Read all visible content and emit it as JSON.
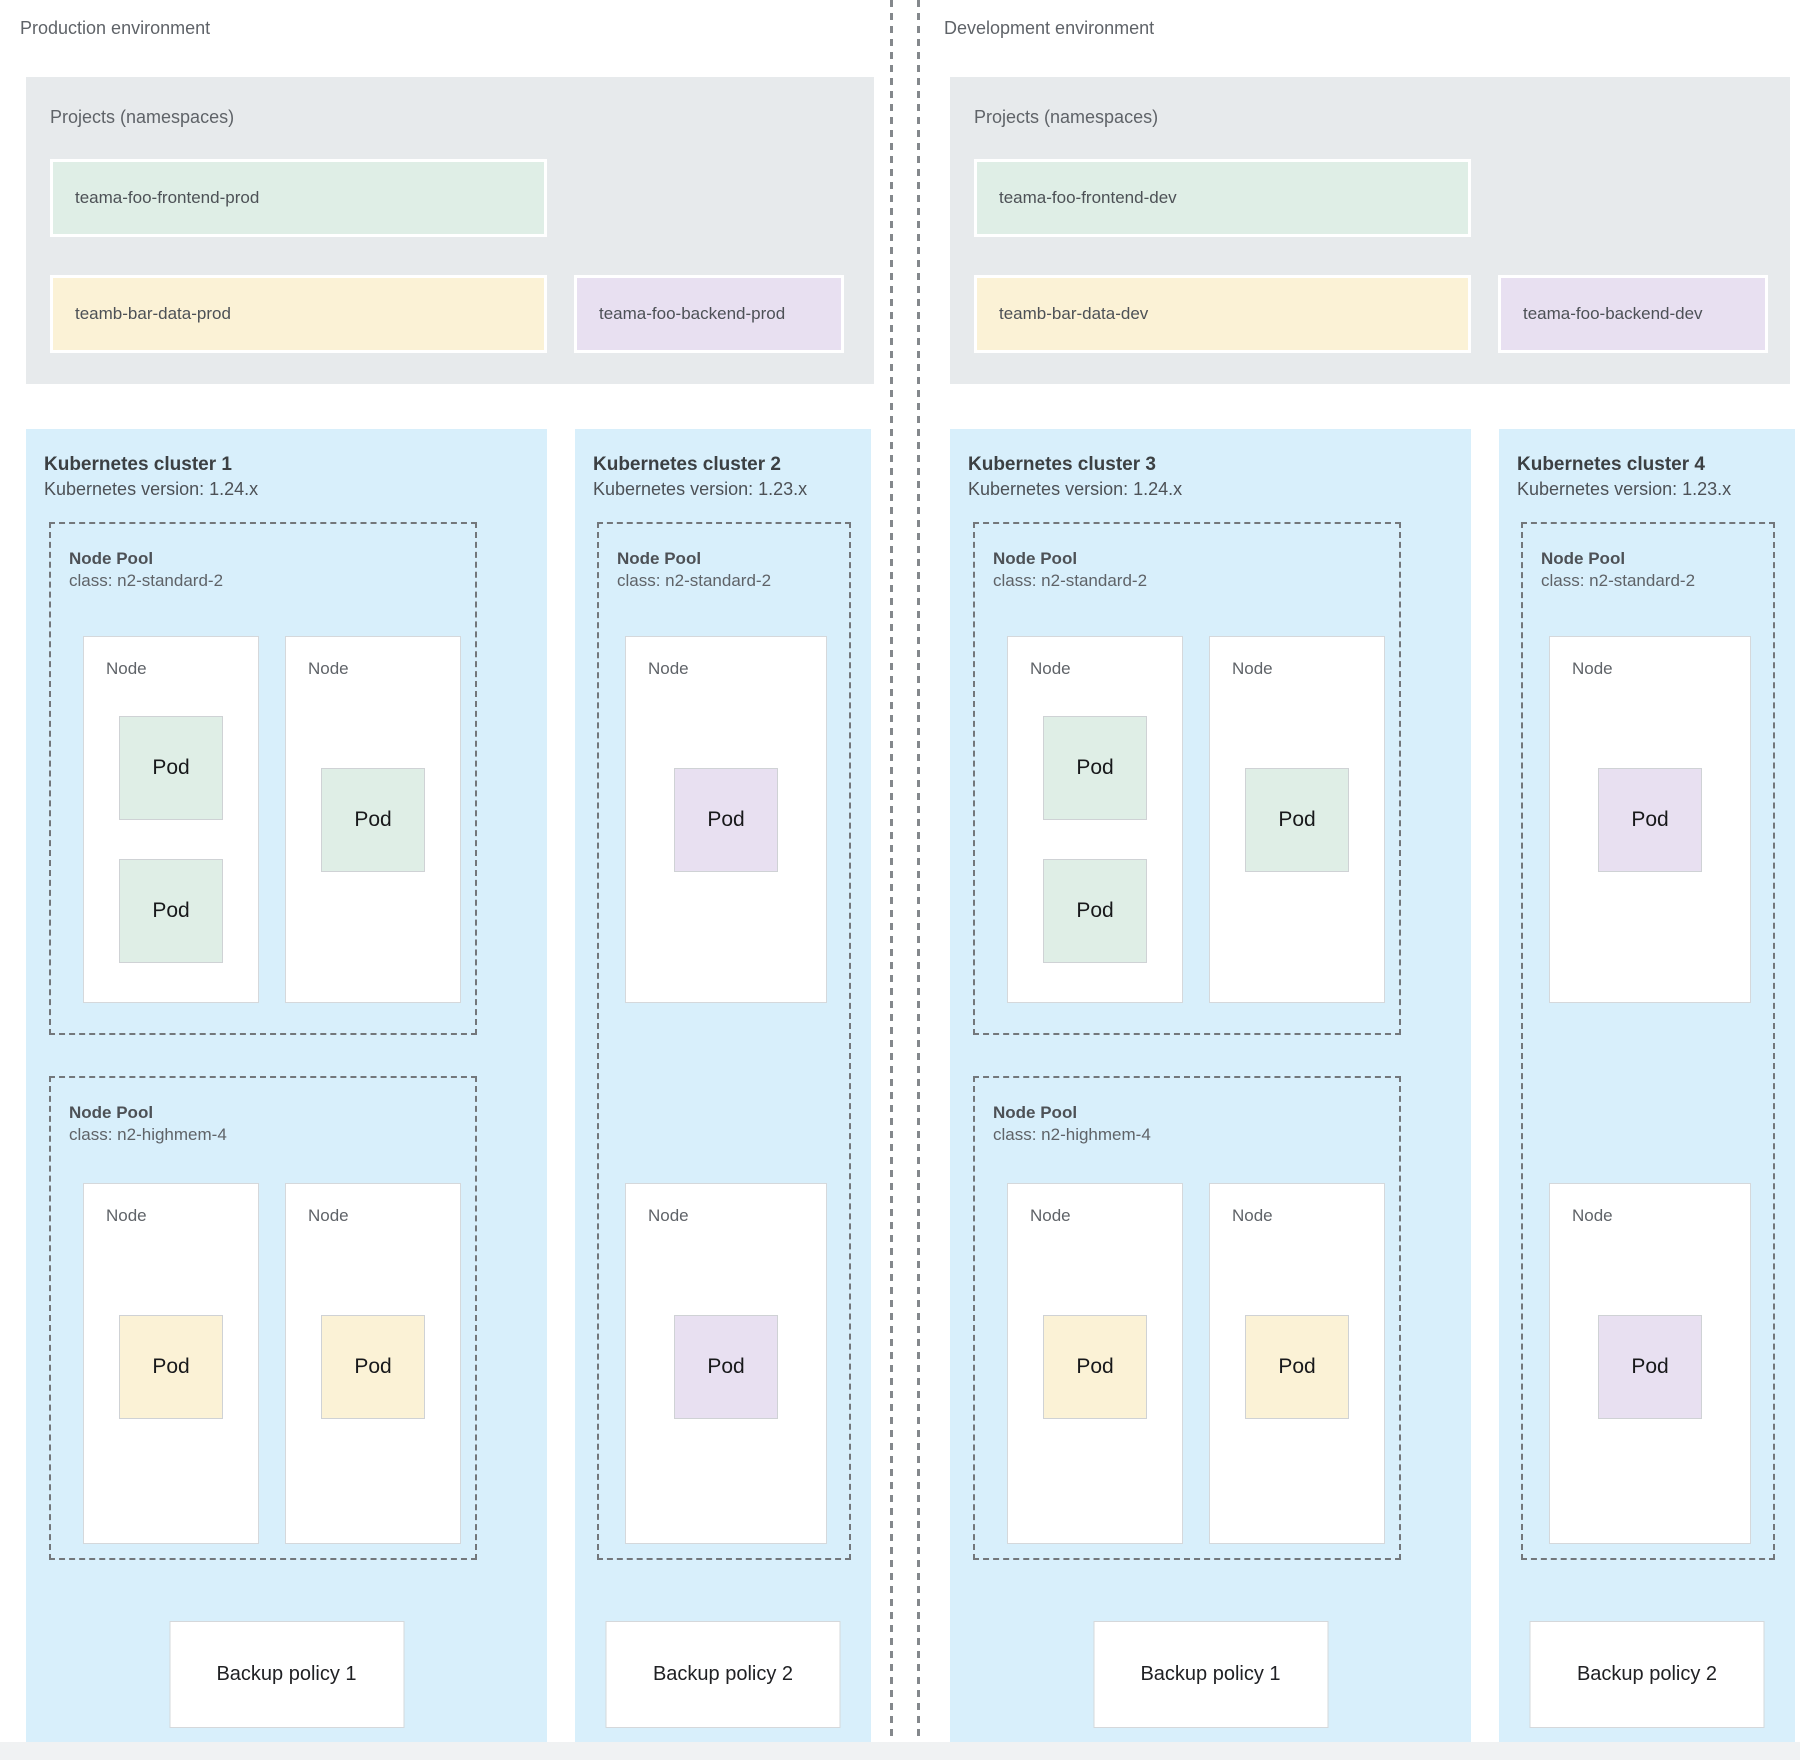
{
  "palette": {
    "cluster_bg": "#d8effb",
    "projects_panel_bg": "#e7eaec",
    "namespace_green": "#dfeee6",
    "namespace_yellow": "#fbf2d6",
    "namespace_purple": "#e8e0f1"
  },
  "environments": [
    {
      "label": "Production environment",
      "projects": {
        "title": "Projects (namespaces)",
        "namespaces": [
          {
            "name": "teama-foo-frontend-prod",
            "color": "#dfeee6"
          },
          {
            "name": "teamb-bar-data-prod",
            "color": "#fbf2d6"
          },
          {
            "name": "teama-foo-backend-prod",
            "color": "#e8e0f1"
          }
        ]
      },
      "clusters": [
        {
          "title": "Kubernetes cluster 1",
          "version": "Kubernetes version: 1.24.x",
          "backup_policy": "Backup policy 1",
          "node_pools": [
            {
              "name": "Node Pool",
              "class": "class: n2-standard-2",
              "nodes": [
                {
                  "label": "Node",
                  "pods": [
                    {
                      "label": "Pod",
                      "color": "#dfeee6"
                    },
                    {
                      "label": "Pod",
                      "color": "#dfeee6"
                    }
                  ]
                },
                {
                  "label": "Node",
                  "pods": [
                    {
                      "label": "Pod",
                      "color": "#dfeee6"
                    }
                  ]
                }
              ]
            },
            {
              "name": "Node Pool",
              "class": "class: n2-highmem-4",
              "nodes": [
                {
                  "label": "Node",
                  "pods": [
                    {
                      "label": "Pod",
                      "color": "#fbf2d6"
                    }
                  ]
                },
                {
                  "label": "Node",
                  "pods": [
                    {
                      "label": "Pod",
                      "color": "#fbf2d6"
                    }
                  ]
                }
              ]
            }
          ]
        },
        {
          "title": "Kubernetes cluster 2",
          "version": "Kubernetes version: 1.23.x",
          "backup_policy": "Backup policy 2",
          "node_pools": [
            {
              "name": "Node Pool",
              "class": "class: n2-standard-2",
              "nodes": [
                {
                  "label": "Node",
                  "pods": [
                    {
                      "label": "Pod",
                      "color": "#e8e0f1"
                    }
                  ]
                },
                {
                  "label": "Node",
                  "pods": [
                    {
                      "label": "Pod",
                      "color": "#e8e0f1"
                    }
                  ]
                }
              ]
            }
          ]
        }
      ]
    },
    {
      "label": "Development environment",
      "projects": {
        "title": "Projects (namespaces)",
        "namespaces": [
          {
            "name": "teama-foo-frontend-dev",
            "color": "#dfeee6"
          },
          {
            "name": "teamb-bar-data-dev",
            "color": "#fbf2d6"
          },
          {
            "name": "teama-foo-backend-dev",
            "color": "#e8e0f1"
          }
        ]
      },
      "clusters": [
        {
          "title": "Kubernetes cluster 3",
          "version": "Kubernetes version: 1.24.x",
          "backup_policy": "Backup policy 1",
          "node_pools": [
            {
              "name": "Node Pool",
              "class": "class: n2-standard-2",
              "nodes": [
                {
                  "label": "Node",
                  "pods": [
                    {
                      "label": "Pod",
                      "color": "#dfeee6"
                    },
                    {
                      "label": "Pod",
                      "color": "#dfeee6"
                    }
                  ]
                },
                {
                  "label": "Node",
                  "pods": [
                    {
                      "label": "Pod",
                      "color": "#dfeee6"
                    }
                  ]
                }
              ]
            },
            {
              "name": "Node Pool",
              "class": "class: n2-highmem-4",
              "nodes": [
                {
                  "label": "Node",
                  "pods": [
                    {
                      "label": "Pod",
                      "color": "#fbf2d6"
                    }
                  ]
                },
                {
                  "label": "Node",
                  "pods": [
                    {
                      "label": "Pod",
                      "color": "#fbf2d6"
                    }
                  ]
                }
              ]
            }
          ]
        },
        {
          "title": "Kubernetes cluster 4",
          "version": "Kubernetes version: 1.23.x",
          "backup_policy": "Backup policy 2",
          "node_pools": [
            {
              "name": "Node Pool",
              "class": "class: n2-standard-2",
              "nodes": [
                {
                  "label": "Node",
                  "pods": [
                    {
                      "label": "Pod",
                      "color": "#e8e0f1"
                    }
                  ]
                },
                {
                  "label": "Node",
                  "pods": [
                    {
                      "label": "Pod",
                      "color": "#e8e0f1"
                    }
                  ]
                }
              ]
            }
          ]
        }
      ]
    }
  ]
}
